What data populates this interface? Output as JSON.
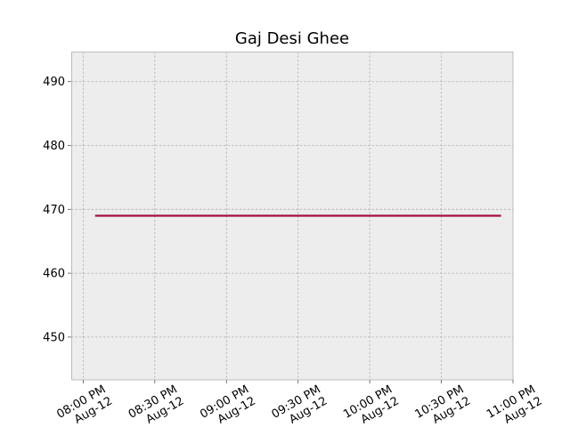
{
  "chart_data": {
    "type": "line",
    "title": "Gaj Desi Ghee",
    "xlabel": "",
    "ylabel": "",
    "x_tick_labels": [
      [
        "08:00 PM",
        "Aug-12"
      ],
      [
        "08:30 PM",
        "Aug-12"
      ],
      [
        "09:00 PM",
        "Aug-12"
      ],
      [
        "09:30 PM",
        "Aug-12"
      ],
      [
        "10:00 PM",
        "Aug-12"
      ],
      [
        "10:30 PM",
        "Aug-12"
      ],
      [
        "11:00 PM",
        "Aug-12"
      ]
    ],
    "y_ticks": [
      450,
      460,
      470,
      480,
      490
    ],
    "ylim": [
      443.3,
      494.7
    ],
    "xlim": [
      "Aug-12 07:55 PM",
      "Aug-12 11:00 PM"
    ],
    "grid": true,
    "background_color": "#ededed",
    "series": [
      {
        "color": "#a50f3c",
        "x": [
          "Aug-12 08:05 PM",
          "Aug-12 10:55 PM"
        ],
        "values": [
          469,
          469
        ]
      }
    ]
  }
}
